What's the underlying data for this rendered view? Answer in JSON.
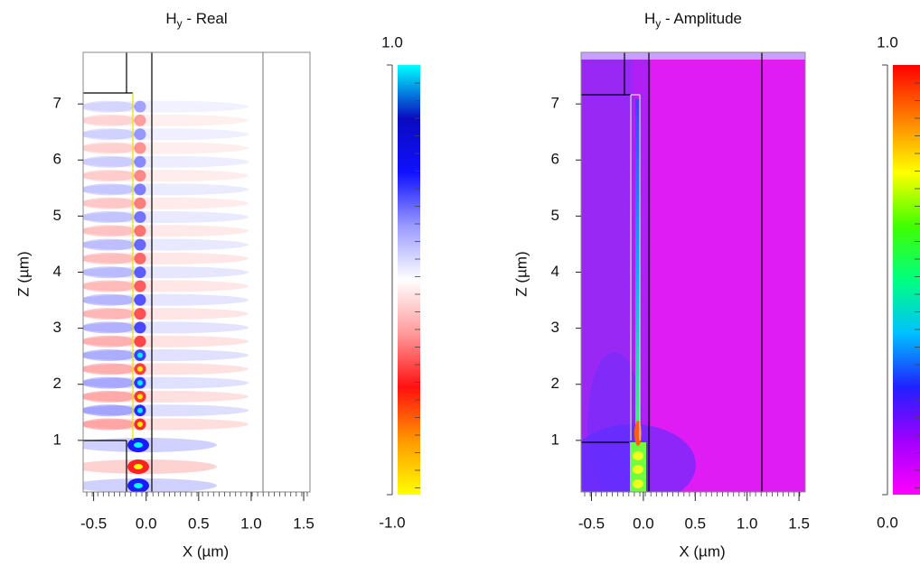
{
  "chart_data": [
    {
      "type": "heatmap",
      "title": {
        "main": "H",
        "sub": "y",
        "rest": " - Real"
      },
      "xlabel": "X (µm)",
      "ylabel": "Z (µm)",
      "xlim": [
        -0.6,
        1.56
      ],
      "ylim": [
        0.08,
        7.92
      ],
      "xticks": [
        {
          "value": -0.5,
          "label": "-0.5"
        },
        {
          "value": 0,
          "label": "0.0"
        },
        {
          "value": 0.5,
          "label": "0.5"
        },
        {
          "value": 1,
          "label": "1.0"
        },
        {
          "value": 1.5,
          "label": "1.5"
        }
      ],
      "yticks": [
        1,
        2,
        3,
        4,
        5,
        6,
        7
      ],
      "colorbar": {
        "lim": [
          {
            "value": -1,
            "label": "-1.0"
          },
          {
            "value": 1,
            "label": "1.0"
          }
        ],
        "colors": [
          "#ffff00",
          "#ff9900",
          "#ff1010",
          "#ff9a9a",
          "#ffffff",
          "#9a9aff",
          "#1010ff",
          "#0a0ac0",
          "#00ffff"
        ]
      }
    },
    {
      "type": "heatmap",
      "title": {
        "main": "H",
        "sub": "y",
        "rest": " - Amplitude"
      },
      "xlabel": "X (µm)",
      "ylabel": "Z (µm)",
      "xlim": [
        -0.6,
        1.56
      ],
      "ylim": [
        0.08,
        7.92
      ],
      "xticks": [
        {
          "value": -0.5,
          "label": "-0.5"
        },
        {
          "value": 0,
          "label": "0.0"
        },
        {
          "value": 0.5,
          "label": "0.5"
        },
        {
          "value": 1,
          "label": "1.0"
        },
        {
          "value": 1.5,
          "label": "1.5"
        }
      ],
      "yticks": [
        1,
        2,
        3,
        4,
        5,
        6,
        7
      ],
      "colorbar": {
        "lim": [
          {
            "value": 0,
            "label": "0.0"
          },
          {
            "value": 1,
            "label": "1.0"
          }
        ],
        "colors": [
          "#ff00ff",
          "#a000ff",
          "#2020ff",
          "#00c0ff",
          "#00ff80",
          "#40ff00",
          "#ffff00",
          "#ff8000",
          "#ff0000"
        ]
      }
    }
  ]
}
